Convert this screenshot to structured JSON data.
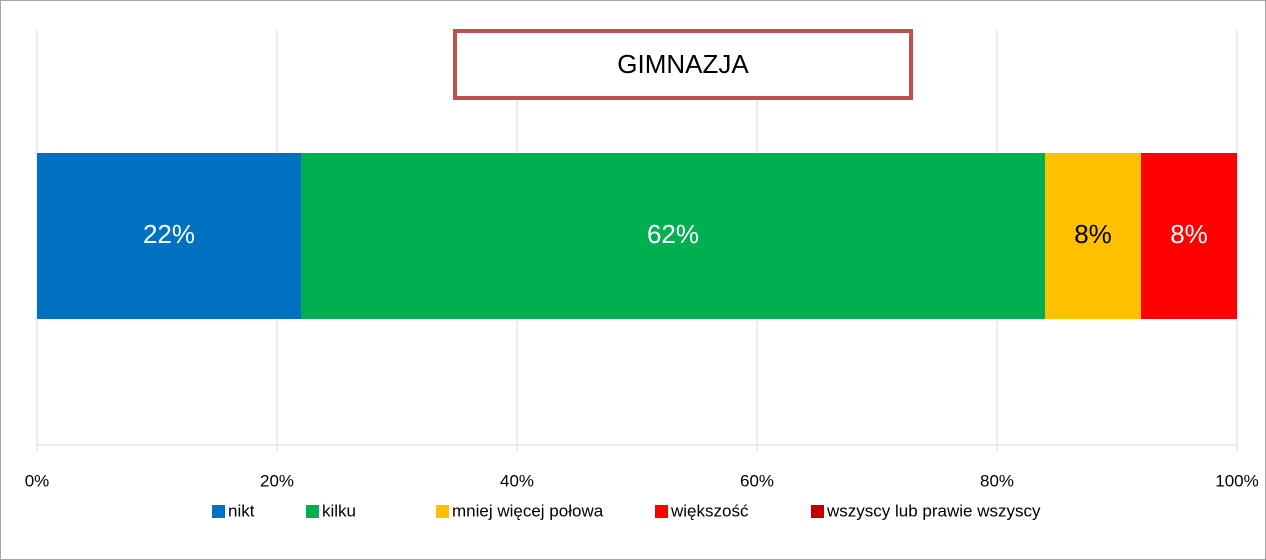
{
  "chart_data": {
    "type": "stacked_bar_horizontal",
    "title": "GIMNAZJA",
    "series": [
      {
        "name": "nikt",
        "color": "#0070c0",
        "values": [
          22
        ],
        "value_labels": [
          "22%"
        ]
      },
      {
        "name": "kilku",
        "color": "#00b050",
        "values": [
          62
        ],
        "value_labels": [
          "62%"
        ]
      },
      {
        "name": "mniej więcej połowa",
        "color": "#ffc000",
        "values": [
          8
        ],
        "value_labels": [
          "8%"
        ]
      },
      {
        "name": "większość",
        "color": "#ff0000",
        "values": [
          8
        ],
        "value_labels": [
          "8%"
        ]
      },
      {
        "name": "wszyscy lub prawie wszyscy",
        "color": "#c00000",
        "values": [
          0
        ]
      }
    ],
    "xlim": [
      0,
      100
    ],
    "xticks": [
      {
        "value": 0,
        "label": "0%"
      },
      {
        "value": 20,
        "label": "20%"
      },
      {
        "value": 40,
        "label": "40%"
      },
      {
        "value": 60,
        "label": "60%"
      },
      {
        "value": 80,
        "label": "80%"
      },
      {
        "value": 100,
        "label": "100%"
      }
    ],
    "grid": true,
    "legend": "bottom"
  }
}
